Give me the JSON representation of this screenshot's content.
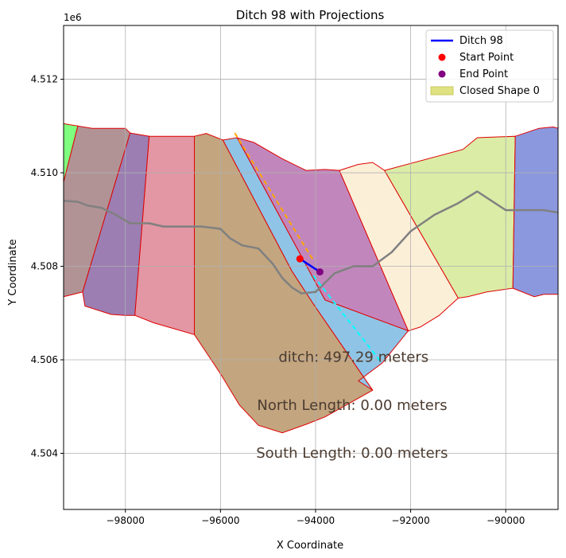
{
  "chart_data": {
    "type": "line",
    "title": "Ditch 98 with Projections",
    "xlabel": "X Coordinate",
    "ylabel": "Y Coordinate",
    "y_offset_label": "1e6",
    "xlim": [
      -99300,
      -88900
    ],
    "ylim": [
      4502800,
      4513150
    ],
    "x_ticks": [
      -98000,
      -96000,
      -94000,
      -92000,
      -90000
    ],
    "x_tick_labels": [
      "−98000",
      "−96000",
      "−94000",
      "−92000",
      "−90000"
    ],
    "y_ticks": [
      4504000,
      4506000,
      4508000,
      4510000,
      4512000
    ],
    "y_tick_labels": [
      "4.504",
      "4.506",
      "4.508",
      "4.510",
      "4.512"
    ],
    "grid": true,
    "legend_position": "top-right",
    "legend": [
      {
        "label": "Ditch 98",
        "kind": "line",
        "color": "#0000ff"
      },
      {
        "label": "Start Point",
        "kind": "marker",
        "color": "#ff0000"
      },
      {
        "label": "End Point",
        "kind": "marker",
        "color": "#800080"
      },
      {
        "label": "Closed Shape 0",
        "kind": "patch",
        "color": "#d9dd6a"
      }
    ],
    "polygons": [
      {
        "fill": "#7fff7f",
        "points": [
          [
            -99300,
            4511050
          ],
          [
            -99000,
            4511000
          ],
          [
            -99300,
            4509800
          ]
        ]
      },
      {
        "fill": "#b19396",
        "points": [
          [
            -99300,
            4509800
          ],
          [
            -99000,
            4511000
          ],
          [
            -98700,
            4510950
          ],
          [
            -98000,
            4510950
          ],
          [
            -97900,
            4510850
          ],
          [
            -98900,
            4507450
          ],
          [
            -99300,
            4507350
          ]
        ]
      },
      {
        "fill": "#9c7eb2",
        "points": [
          [
            -97900,
            4510850
          ],
          [
            -97500,
            4510780
          ],
          [
            -97800,
            4506950
          ],
          [
            -98000,
            4506950
          ],
          [
            -98300,
            4506970
          ],
          [
            -98850,
            4507150
          ],
          [
            -98900,
            4507450
          ]
        ]
      },
      {
        "fill": "#e396a3",
        "points": [
          [
            -97500,
            4510780
          ],
          [
            -96550,
            4510780
          ],
          [
            -96550,
            4506540
          ],
          [
            -97400,
            4506790
          ],
          [
            -97800,
            4506950
          ]
        ]
      },
      {
        "fill": "#c3a57f",
        "points": [
          [
            -96550,
            4510780
          ],
          [
            -96300,
            4510840
          ],
          [
            -95950,
            4510700
          ],
          [
            -94500,
            4507900
          ],
          [
            -94050,
            4507200
          ],
          [
            -92800,
            4505350
          ],
          [
            -93800,
            4504780
          ],
          [
            -94200,
            4504620
          ],
          [
            -94700,
            4504440
          ],
          [
            -95200,
            4504600
          ],
          [
            -95600,
            4505030
          ],
          [
            -96000,
            4505700
          ],
          [
            -96550,
            4506540
          ]
        ]
      },
      {
        "fill": "#8fc4e6",
        "points": [
          [
            -95950,
            4510700
          ],
          [
            -95650,
            4510750
          ],
          [
            -93800,
            4507280
          ],
          [
            -92050,
            4506620
          ],
          [
            -92600,
            4505930
          ],
          [
            -93100,
            4505550
          ],
          [
            -92800,
            4505350
          ],
          [
            -94050,
            4507200
          ],
          [
            -94500,
            4507900
          ]
        ]
      },
      {
        "fill": "#c187bc",
        "points": [
          [
            -95650,
            4510750
          ],
          [
            -95300,
            4510650
          ],
          [
            -94700,
            4510300
          ],
          [
            -94200,
            4510050
          ],
          [
            -93800,
            4510070
          ],
          [
            -93500,
            4510050
          ],
          [
            -92050,
            4506620
          ],
          [
            -93800,
            4507280
          ]
        ]
      },
      {
        "fill": "#fcefd8",
        "points": [
          [
            -93500,
            4510050
          ],
          [
            -93100,
            4510180
          ],
          [
            -92800,
            4510220
          ],
          [
            -92550,
            4510050
          ],
          [
            -91000,
            4507320
          ],
          [
            -91400,
            4506950
          ],
          [
            -91800,
            4506700
          ],
          [
            -92050,
            4506620
          ]
        ]
      },
      {
        "fill": "#dbeca6",
        "points": [
          [
            -92550,
            4510050
          ],
          [
            -90900,
            4510500
          ],
          [
            -90600,
            4510750
          ],
          [
            -89800,
            4510780
          ],
          [
            -89850,
            4507530
          ],
          [
            -90400,
            4507450
          ],
          [
            -90800,
            4507350
          ],
          [
            -91000,
            4507320
          ]
        ]
      },
      {
        "fill": "#8b98de",
        "points": [
          [
            -89800,
            4510780
          ],
          [
            -89300,
            4510950
          ],
          [
            -89000,
            4510980
          ],
          [
            -88900,
            4510950
          ],
          [
            -88900,
            4507400
          ],
          [
            -89200,
            4507400
          ],
          [
            -89400,
            4507350
          ],
          [
            -89850,
            4507530
          ]
        ]
      }
    ],
    "centerline": [
      [
        -99300,
        4509400
      ],
      [
        -99000,
        4509380
      ],
      [
        -98800,
        4509300
      ],
      [
        -98500,
        4509250
      ],
      [
        -98200,
        4509100
      ],
      [
        -97900,
        4508920
      ],
      [
        -97500,
        4508920
      ],
      [
        -97200,
        4508850
      ],
      [
        -96800,
        4508850
      ],
      [
        -96400,
        4508850
      ],
      [
        -96000,
        4508800
      ],
      [
        -95800,
        4508600
      ],
      [
        -95550,
        4508450
      ],
      [
        -95200,
        4508380
      ],
      [
        -94900,
        4508050
      ],
      [
        -94700,
        4507750
      ],
      [
        -94500,
        4507550
      ],
      [
        -94300,
        4507420
      ],
      [
        -94000,
        4507450
      ],
      [
        -93600,
        4507850
      ],
      [
        -93200,
        4508000
      ],
      [
        -92800,
        4508000
      ],
      [
        -92400,
        4508300
      ],
      [
        -92000,
        4508750
      ],
      [
        -91500,
        4509100
      ],
      [
        -91000,
        4509350
      ],
      [
        -90600,
        4509600
      ],
      [
        -90000,
        4509200
      ],
      [
        -89200,
        4509200
      ],
      [
        -88900,
        4509150
      ]
    ],
    "ditch": {
      "name": "Ditch 98",
      "start": [
        -94330,
        4508160
      ],
      "end": [
        -93910,
        4507880
      ]
    },
    "projection_north": [
      [
        -95700,
        4510850
      ],
      [
        -94030,
        4508100
      ]
    ],
    "projection_south": [
      [
        -94050,
        4507800
      ],
      [
        -92620,
        4505950
      ]
    ],
    "annotations": [
      {
        "text": "ditch: 497.29 meters",
        "x": -94780,
        "y": 4505960
      },
      {
        "text": "North Length: 0.00 meters",
        "x": -95230,
        "y": 4504930
      },
      {
        "text": "South Length: 0.00 meters",
        "x": -95250,
        "y": 4503910
      }
    ],
    "colors": {
      "polygon_edge": "#e00000",
      "centerline": "#808080",
      "ditch": "#0000ff",
      "start": "#ff0000",
      "end": "#800080",
      "projection_north": "#ffa500",
      "projection_south": "#00ffff"
    }
  }
}
